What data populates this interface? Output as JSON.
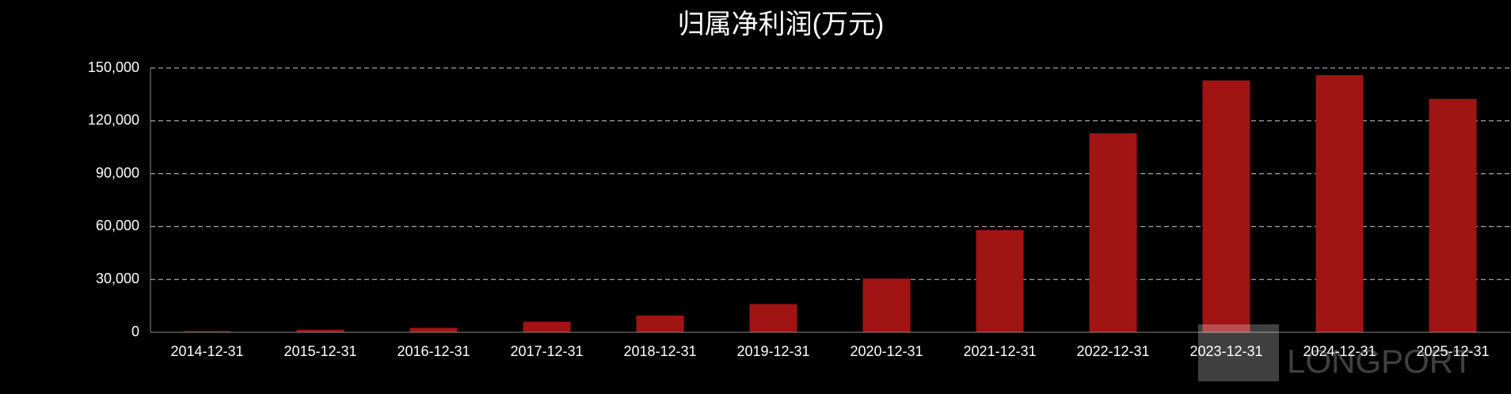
{
  "chart_data": {
    "type": "bar",
    "title": "归属净利润(万元)",
    "categories": [
      "2014-12-31",
      "2015-12-31",
      "2016-12-31",
      "2017-12-31",
      "2018-12-31",
      "2019-12-31",
      "2020-12-31",
      "2021-12-31",
      "2022-12-31",
      "2023-12-31",
      "2024-12-31",
      "2025-12-31"
    ],
    "values": [
      700,
      1500,
      2500,
      6000,
      9500,
      16000,
      30500,
      58000,
      113000,
      143000,
      146000,
      132500
    ],
    "color": "#a01414",
    "ylim": [
      0,
      150000
    ],
    "yticks": [
      0,
      {
        "value": 30000,
        "label": "30,000"
      },
      {
        "value": 60000,
        "label": "60,000"
      },
      {
        "value": 90000,
        "label": "90,000"
      },
      {
        "value": 120000,
        "label": "120,000"
      },
      {
        "value": 150000,
        "label": "150,000"
      }
    ],
    "grid": true,
    "watermark": "LONGPORT"
  }
}
